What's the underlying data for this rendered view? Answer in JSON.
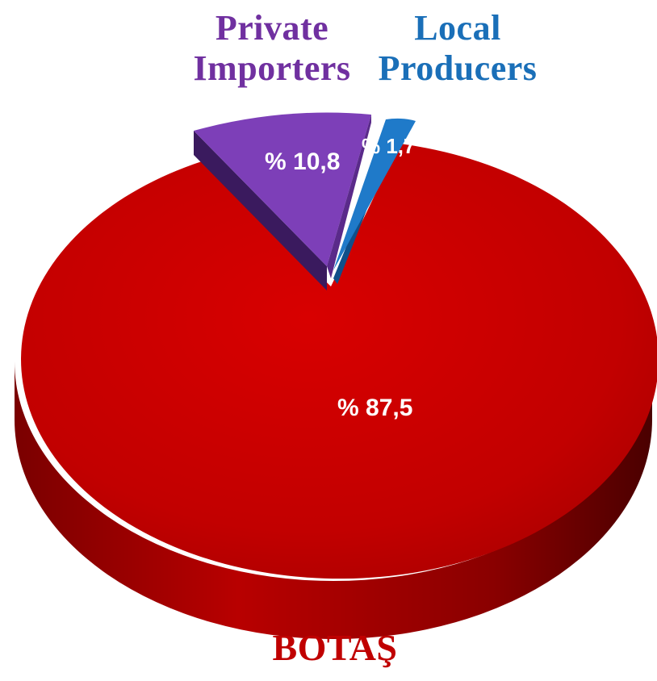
{
  "chart_data": {
    "type": "pie",
    "style": "3d-exploded",
    "slices": [
      {
        "name_lines": [
          "BOTAŞ"
        ],
        "value": 87.5,
        "value_label": "% 87,5",
        "color": "#c40000"
      },
      {
        "name_lines": [
          "Private",
          "Importers"
        ],
        "value": 10.8,
        "value_label": "% 10,8",
        "color": "#7d3fb8"
      },
      {
        "name_lines": [
          "Local",
          "Producers"
        ],
        "value": 1.7,
        "value_label": "% 1,7",
        "color": "#1f7ac9"
      }
    ],
    "label_colors": {
      "BOTAŞ": "#c00000",
      "Private Importers": "#7030a0",
      "Local Producers": "#1a6fb8"
    }
  }
}
